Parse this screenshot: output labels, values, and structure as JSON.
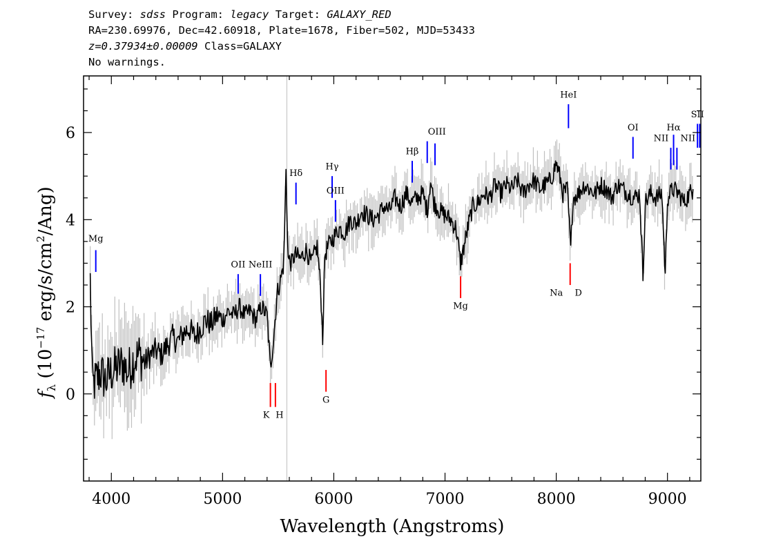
{
  "header": {
    "survey_label": "Survey:",
    "survey": "sdss",
    "program_label": "Program:",
    "program": "legacy",
    "target_label": "Target:",
    "target": "GALAXY_RED",
    "line2": "RA=230.69976, Dec=42.60918, Plate=1678, Fiber=502, MJD=53433",
    "redshift": "z=0.37934±0.00009",
    "class_text": "Class=GALAXY",
    "warnings": "No warnings."
  },
  "chart_data": {
    "type": "line",
    "xlabel": "Wavelength (Angstroms)",
    "ylabel": "fλ (10^-17 erg/s/cm^2/Ang)",
    "ylabel_parts": {
      "f": "f",
      "sub": "λ",
      "a": " (10",
      "exp1": "−17",
      "b": " erg/s/cm",
      "exp2": "2",
      "c": "/Ang)"
    },
    "xlim": [
      3750,
      9300
    ],
    "ylim": [
      -2,
      7.3
    ],
    "x_ticks": [
      4000,
      5000,
      6000,
      7000,
      8000,
      9000
    ],
    "y_ticks": [
      0,
      2,
      4,
      6
    ],
    "x_tick_labels": [
      "4000",
      "5000",
      "6000",
      "7000",
      "8000",
      "9000"
    ],
    "y_tick_labels": [
      "0",
      "2",
      "4",
      "6"
    ],
    "sky_line_x": 5578,
    "grid": false,
    "spectrum": {
      "x": [
        3810,
        3830,
        3860,
        3900,
        3950,
        4000,
        4050,
        4100,
        4150,
        4200,
        4250,
        4300,
        4350,
        4400,
        4450,
        4500,
        4550,
        4600,
        4650,
        4700,
        4750,
        4800,
        4850,
        4900,
        4950,
        5000,
        5050,
        5100,
        5150,
        5200,
        5250,
        5300,
        5350,
        5400,
        5430,
        5460,
        5490,
        5520,
        5550,
        5570,
        5590,
        5620,
        5650,
        5700,
        5750,
        5800,
        5850,
        5880,
        5900,
        5920,
        5950,
        6000,
        6050,
        6100,
        6150,
        6200,
        6250,
        6300,
        6350,
        6400,
        6450,
        6500,
        6550,
        6600,
        6650,
        6700,
        6750,
        6800,
        6840,
        6870,
        6900,
        6950,
        7000,
        7050,
        7100,
        7140,
        7180,
        7220,
        7250,
        7300,
        7350,
        7400,
        7450,
        7500,
        7550,
        7600,
        7650,
        7700,
        7750,
        7800,
        7850,
        7900,
        7950,
        8000,
        8040,
        8060,
        8100,
        8130,
        8150,
        8200,
        8250,
        8300,
        8350,
        8400,
        8450,
        8500,
        8550,
        8600,
        8650,
        8700,
        8750,
        8780,
        8800,
        8850,
        8900,
        8950,
        8980,
        9000,
        9050,
        9100,
        9150,
        9200,
        9230
      ],
      "y": [
        2.6,
        0.2,
        0.3,
        0.5,
        0.3,
        0.5,
        0.6,
        0.7,
        0.5,
        0.8,
        0.9,
        0.7,
        0.9,
        1.0,
        0.9,
        1.1,
        1.3,
        1.2,
        1.4,
        1.5,
        1.3,
        1.5,
        1.7,
        1.6,
        1.8,
        1.7,
        1.9,
        1.8,
        2.0,
        1.8,
        1.9,
        1.7,
        2.0,
        1.8,
        0.6,
        1.3,
        2.3,
        2.6,
        3.0,
        5.1,
        3.1,
        3.0,
        3.2,
        3.1,
        3.3,
        3.0,
        3.4,
        2.5,
        1.3,
        3.2,
        3.4,
        3.6,
        3.8,
        3.7,
        4.0,
        3.9,
        4.2,
        4.1,
        4.0,
        4.1,
        4.3,
        4.2,
        4.5,
        4.3,
        4.6,
        4.4,
        4.5,
        4.6,
        4.2,
        4.9,
        4.4,
        4.2,
        4.1,
        4.0,
        3.8,
        3.0,
        3.5,
        4.0,
        4.3,
        4.4,
        4.6,
        4.5,
        4.8,
        4.6,
        4.8,
        4.7,
        4.9,
        4.6,
        4.8,
        4.9,
        4.7,
        4.8,
        4.9,
        5.3,
        4.9,
        4.6,
        4.7,
        3.3,
        4.5,
        4.6,
        4.8,
        4.7,
        4.6,
        4.8,
        4.7,
        4.5,
        4.8,
        4.7,
        4.6,
        4.5,
        4.6,
        2.7,
        4.4,
        4.6,
        4.5,
        4.6,
        2.7,
        4.5,
        4.7,
        4.6,
        4.4,
        4.6,
        4.7
      ]
    },
    "emission_lines": [
      {
        "label": "Mg",
        "x": 3860,
        "y0": 2.8,
        "y1": 3.3,
        "ly": 3.5
      },
      {
        "label": "OII",
        "x": 5140,
        "y0": 2.3,
        "y1": 2.75,
        "ly": 2.9
      },
      {
        "label": "NeIII",
        "x": 5340,
        "y0": 2.25,
        "y1": 2.75,
        "ly": 2.9
      },
      {
        "label": "Hδ",
        "x": 5660,
        "y0": 4.35,
        "y1": 4.85,
        "ly": 5.0
      },
      {
        "label": "Hγ",
        "x": 5985,
        "y0": 4.5,
        "y1": 5.0,
        "ly": 5.15
      },
      {
        "label": "OIII",
        "x": 6015,
        "y0": 3.95,
        "y1": 4.45,
        "ly": 4.6
      },
      {
        "label": "Hβ",
        "x": 6705,
        "y0": 4.85,
        "y1": 5.35,
        "ly": 5.5
      },
      {
        "label": "OIII",
        "x": 6840,
        "y0": 5.3,
        "y1": 5.8,
        "ly": 5.95,
        "dx": 14
      },
      {
        "label": "OIII",
        "x": 6910,
        "y0": 5.25,
        "y1": 5.75,
        "ly": null
      },
      {
        "label": "HeI",
        "x": 8110,
        "y0": 6.1,
        "y1": 6.65,
        "ly": 6.8
      },
      {
        "label": "OI",
        "x": 8690,
        "y0": 5.4,
        "y1": 5.9,
        "ly": 6.05
      },
      {
        "label": "NII",
        "x": 9030,
        "y0": 5.15,
        "y1": 5.65,
        "ly": 5.8,
        "dx": -14
      },
      {
        "label": "Hα",
        "x": 9055,
        "y0": 5.25,
        "y1": 5.95,
        "ly": 6.05
      },
      {
        "label": "NII",
        "x": 9085,
        "y0": 5.15,
        "y1": 5.65,
        "ly": 5.8,
        "dx": 16
      },
      {
        "label": "SII",
        "x": 9270,
        "y0": 5.65,
        "y1": 6.2,
        "ly": 6.35
      },
      {
        "label": "SII",
        "x": 9290,
        "y0": 5.65,
        "y1": 6.2,
        "ly": null
      }
    ],
    "absorption_lines": [
      {
        "label": "K",
        "x": 5430,
        "y0": -0.3,
        "y1": 0.25,
        "ly": -0.55,
        "dx": -6
      },
      {
        "label": "H",
        "x": 5475,
        "y0": -0.3,
        "y1": 0.25,
        "ly": -0.55,
        "dx": 6
      },
      {
        "label": "G",
        "x": 5930,
        "y0": 0.05,
        "y1": 0.55,
        "ly": -0.2
      },
      {
        "label": "Mg",
        "x": 7140,
        "y0": 2.2,
        "y1": 2.7,
        "ly": 1.95
      },
      {
        "label": "Na",
        "x": 8125,
        "y0": 2.5,
        "y1": 3.0,
        "ly": 2.25,
        "dx": -20
      },
      {
        "label": "D",
        "x": 8125,
        "y0": null,
        "y1": null,
        "ly": 2.25,
        "dx": 12
      }
    ],
    "colors": {
      "spectrum": "#000000",
      "error": "#c0c0c0",
      "emission": "#0000ff",
      "absorption": "#ff0000",
      "sky_line": "#c0c0c0"
    }
  }
}
